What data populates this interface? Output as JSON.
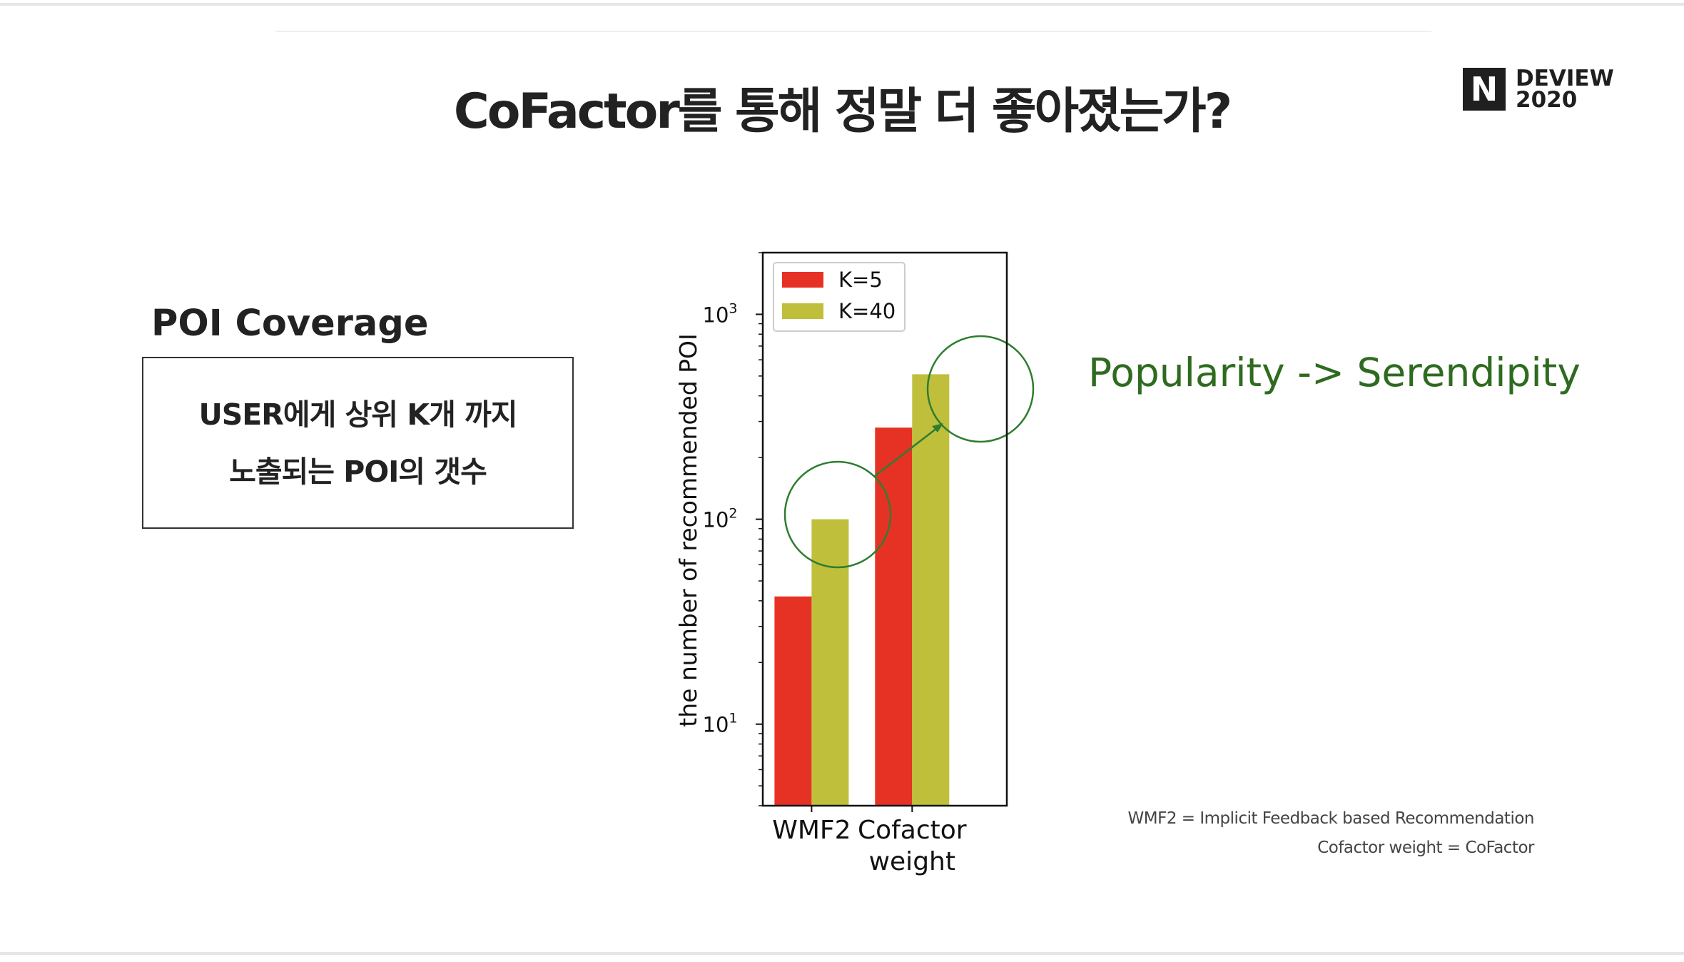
{
  "slide": {
    "title": "CoFactor를 통해 정말 더 좋아졌는가?",
    "logo": {
      "mark": "N",
      "line1": "DEVIEW",
      "line2": "2020"
    },
    "poi_heading": "POI Coverage",
    "definition_lines": [
      "USER에게 상위 K개 까지",
      "노출되는 POI의 갯수"
    ],
    "callout": "Popularity -> Serendipity",
    "footnotes": [
      "WMF2 = Implicit Feedback based Recommendation",
      "Cofactor weight = CoFactor"
    ],
    "colors": {
      "callout": "#2e6b1f",
      "k5": "#e63224",
      "k40": "#bfbf3b",
      "circle": "#2f7d2f"
    }
  },
  "chart_data": {
    "type": "bar",
    "categories": [
      [
        "WMF2"
      ],
      [
        "Cofactor",
        "weight"
      ]
    ],
    "series": [
      {
        "name": "K=5",
        "color": "#e63224",
        "values": [
          42,
          280
        ]
      },
      {
        "name": "K=40",
        "color": "#bfbf3b",
        "values": [
          100,
          510
        ]
      }
    ],
    "ylabel": "the number of recommended POI",
    "yscale": "log",
    "ylim": [
      4,
      2000
    ],
    "yticks": [
      {
        "value": 10,
        "base": "10",
        "exp": "1"
      },
      {
        "value": 100,
        "base": "10",
        "exp": "2"
      },
      {
        "value": 1000,
        "base": "10",
        "exp": "3"
      }
    ],
    "legend": "top-left",
    "annotation": "arrow from WMF2 K=40 circle to Cofactor weight K=40 circle"
  }
}
